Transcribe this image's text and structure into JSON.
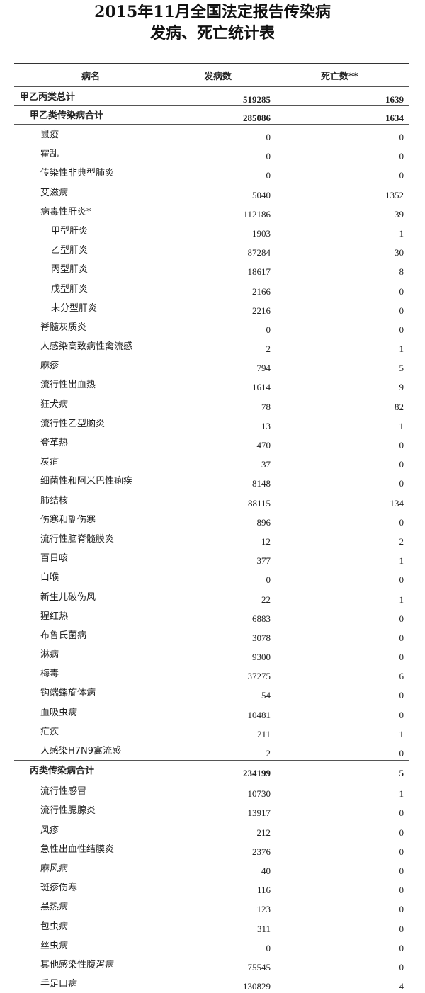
{
  "title": {
    "line1": "2015年11月全国法定报告传染病",
    "line2": "发病、死亡统计表"
  },
  "table": {
    "headers": {
      "name": "病名",
      "cases": "发病数",
      "deaths": "死亡数**"
    },
    "rows": [
      {
        "name": "甲乙丙类总计",
        "cases": "519285",
        "deaths": "1639",
        "level": 0,
        "bold": true
      },
      {
        "name": "甲乙类传染病合计",
        "cases": "285086",
        "deaths": "1634",
        "level": 1,
        "bold": true
      },
      {
        "name": "鼠疫",
        "cases": "0",
        "deaths": "0",
        "level": 2
      },
      {
        "name": "霍乱",
        "cases": "0",
        "deaths": "0",
        "level": 2
      },
      {
        "name": "传染性非典型肺炎",
        "cases": "0",
        "deaths": "0",
        "level": 2
      },
      {
        "name": "艾滋病",
        "cases": "5040",
        "deaths": "1352",
        "level": 2
      },
      {
        "name": "病毒性肝炎*",
        "cases": "112186",
        "deaths": "39",
        "level": 2
      },
      {
        "name": "甲型肝炎",
        "cases": "1903",
        "deaths": "1",
        "level": 3
      },
      {
        "name": "乙型肝炎",
        "cases": "87284",
        "deaths": "30",
        "level": 3
      },
      {
        "name": "丙型肝炎",
        "cases": "18617",
        "deaths": "8",
        "level": 3
      },
      {
        "name": "戊型肝炎",
        "cases": "2166",
        "deaths": "0",
        "level": 3
      },
      {
        "name": "未分型肝炎",
        "cases": "2216",
        "deaths": "0",
        "level": 3
      },
      {
        "name": "脊髓灰质炎",
        "cases": "0",
        "deaths": "0",
        "level": 2
      },
      {
        "name": "人感染高致病性禽流感",
        "cases": "2",
        "deaths": "1",
        "level": 2
      },
      {
        "name": "麻疹",
        "cases": "794",
        "deaths": "5",
        "level": 2
      },
      {
        "name": "流行性出血热",
        "cases": "1614",
        "deaths": "9",
        "level": 2
      },
      {
        "name": "狂犬病",
        "cases": "78",
        "deaths": "82",
        "level": 2
      },
      {
        "name": "流行性乙型脑炎",
        "cases": "13",
        "deaths": "1",
        "level": 2
      },
      {
        "name": "登革热",
        "cases": "470",
        "deaths": "0",
        "level": 2
      },
      {
        "name": "炭疽",
        "cases": "37",
        "deaths": "0",
        "level": 2
      },
      {
        "name": "细菌性和阿米巴性痢疾",
        "cases": "8148",
        "deaths": "0",
        "level": 2
      },
      {
        "name": "肺结核",
        "cases": "88115",
        "deaths": "134",
        "level": 2
      },
      {
        "name": "伤寒和副伤寒",
        "cases": "896",
        "deaths": "0",
        "level": 2
      },
      {
        "name": "流行性脑脊髓膜炎",
        "cases": "12",
        "deaths": "2",
        "level": 2
      },
      {
        "name": "百日咳",
        "cases": "377",
        "deaths": "1",
        "level": 2
      },
      {
        "name": "白喉",
        "cases": "0",
        "deaths": "0",
        "level": 2
      },
      {
        "name": "新生儿破伤风",
        "cases": "22",
        "deaths": "1",
        "level": 2
      },
      {
        "name": "猩红热",
        "cases": "6883",
        "deaths": "0",
        "level": 2
      },
      {
        "name": "布鲁氏菌病",
        "cases": "3078",
        "deaths": "0",
        "level": 2
      },
      {
        "name": "淋病",
        "cases": "9300",
        "deaths": "0",
        "level": 2
      },
      {
        "name": "梅毒",
        "cases": "37275",
        "deaths": "6",
        "level": 2
      },
      {
        "name": "钩端螺旋体病",
        "cases": "54",
        "deaths": "0",
        "level": 2
      },
      {
        "name": "血吸虫病",
        "cases": "10481",
        "deaths": "0",
        "level": 2
      },
      {
        "name": "疟疾",
        "cases": "211",
        "deaths": "1",
        "level": 2
      },
      {
        "name": "人感染H7N9禽流感",
        "cases": "2",
        "deaths": "0",
        "level": 2
      },
      {
        "name": "丙类传染病合计",
        "cases": "234199",
        "deaths": "5",
        "level": 1,
        "bold": true
      },
      {
        "name": "流行性感冒",
        "cases": "10730",
        "deaths": "1",
        "level": 2
      },
      {
        "name": "流行性腮腺炎",
        "cases": "13917",
        "deaths": "0",
        "level": 2
      },
      {
        "name": "风疹",
        "cases": "212",
        "deaths": "0",
        "level": 2
      },
      {
        "name": "急性出血性结膜炎",
        "cases": "2376",
        "deaths": "0",
        "level": 2
      },
      {
        "name": "麻风病",
        "cases": "40",
        "deaths": "0",
        "level": 2
      },
      {
        "name": "斑疹伤寒",
        "cases": "116",
        "deaths": "0",
        "level": 2
      },
      {
        "name": "黑热病",
        "cases": "123",
        "deaths": "0",
        "level": 2
      },
      {
        "name": "包虫病",
        "cases": "311",
        "deaths": "0",
        "level": 2
      },
      {
        "name": "丝虫病",
        "cases": "0",
        "deaths": "0",
        "level": 2
      },
      {
        "name": "其他感染性腹泻病",
        "cases": "75545",
        "deaths": "0",
        "level": 2
      },
      {
        "name": "手足口病",
        "cases": "130829",
        "deaths": "4",
        "level": 2
      }
    ]
  }
}
